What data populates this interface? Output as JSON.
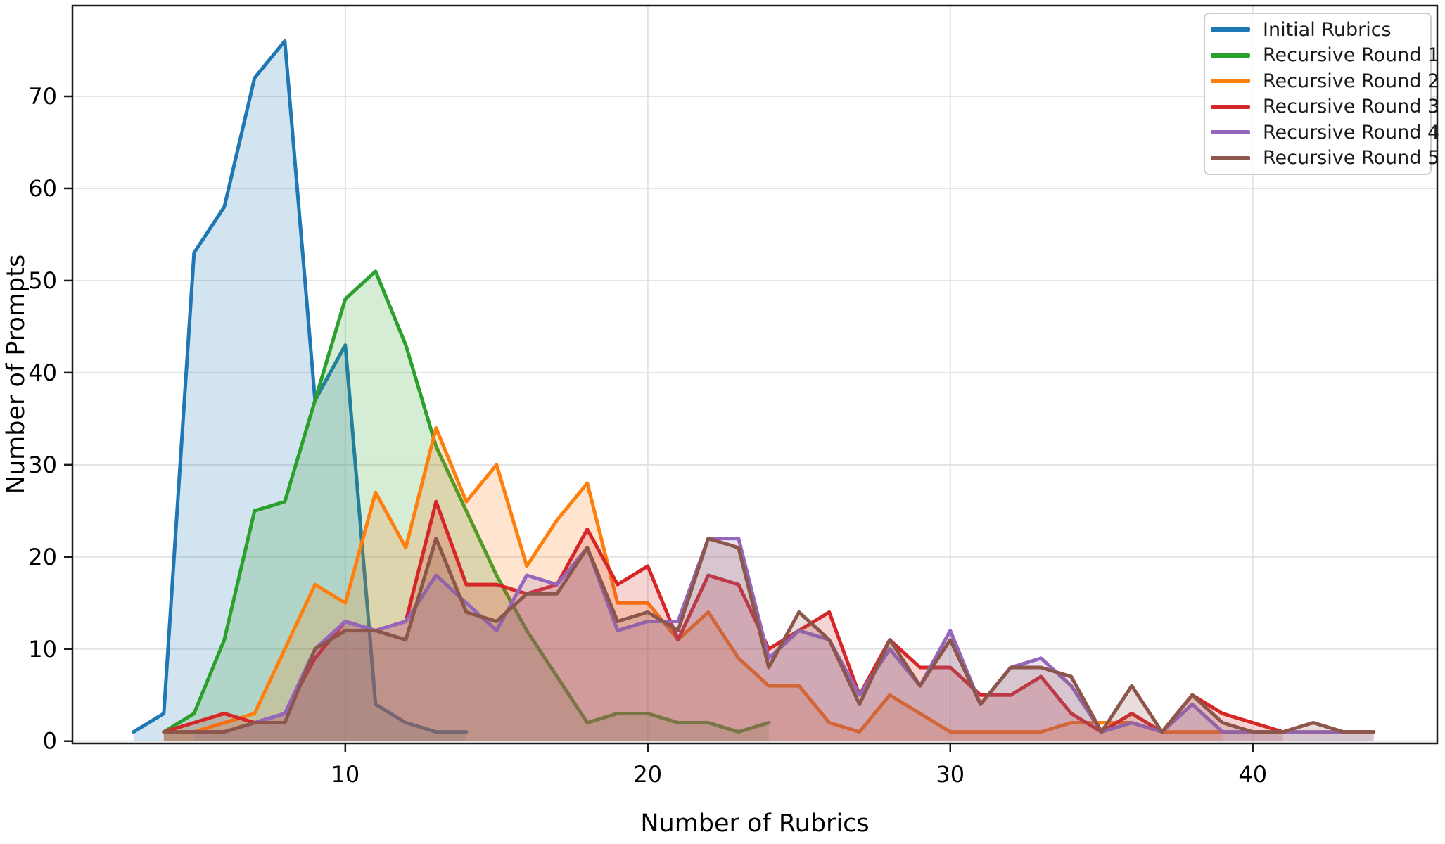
{
  "chart_data": {
    "type": "line",
    "title": "",
    "xlabel": "Number of Rubrics",
    "ylabel": "Number of Prompts",
    "x_ticks": [
      10,
      20,
      30,
      40
    ],
    "y_ticks": [
      0,
      10,
      20,
      30,
      40,
      50,
      60,
      70
    ],
    "xlim": [
      0.98,
      46.1
    ],
    "ylim": [
      -0.25,
      79.85
    ],
    "grid": true,
    "grid_color": "#e3e3e3",
    "frame_color": "#1a1a1a",
    "legend_position": "upper right",
    "fill_alpha": 0.2,
    "line_width": 5,
    "series": [
      {
        "name": "Initial Rubrics",
        "color": "#1f77b4",
        "x_start": 3,
        "values": [
          1,
          3,
          53,
          58,
          72,
          76,
          37,
          43,
          4,
          2,
          1,
          1
        ]
      },
      {
        "name": "Recursive Round 1",
        "color": "#2ca02c",
        "x_start": 4,
        "values": [
          1,
          3,
          11,
          25,
          26,
          37,
          48,
          51,
          43,
          32,
          25,
          18,
          12,
          7,
          2,
          3,
          3,
          2,
          2,
          1,
          2
        ]
      },
      {
        "name": "Recursive Round 2",
        "color": "#ff7f0e",
        "x_start": 4,
        "values": [
          1,
          1,
          2,
          3,
          10,
          17,
          15,
          27,
          21,
          34,
          26,
          30,
          19,
          24,
          28,
          15,
          15,
          11,
          14,
          9,
          6,
          6,
          2,
          1,
          5,
          3,
          1,
          1,
          1,
          1,
          2,
          2,
          2,
          1,
          1,
          1
        ]
      },
      {
        "name": "Recursive Round 3",
        "color": "#d62728",
        "x_start": 4,
        "values": [
          1,
          2,
          3,
          2,
          3,
          9,
          13,
          12,
          13,
          26,
          17,
          17,
          16,
          17,
          23,
          17,
          19,
          11,
          18,
          17,
          10,
          12,
          14,
          5,
          11,
          8,
          8,
          5,
          5,
          7,
          3,
          1,
          3,
          1,
          5,
          3,
          2,
          1
        ]
      },
      {
        "name": "Recursive Round 4",
        "color": "#9467bd",
        "x_start": 5,
        "values": [
          1,
          1,
          2,
          3,
          10,
          13,
          12,
          13,
          18,
          15,
          12,
          18,
          17,
          21,
          12,
          13,
          13,
          22,
          22,
          9,
          12,
          11,
          5,
          10,
          6,
          12,
          4,
          8,
          9,
          6,
          1,
          2,
          1,
          4,
          1,
          1,
          1,
          1,
          1,
          1
        ]
      },
      {
        "name": "Recursive Round 5",
        "color": "#8c564b",
        "x_start": 4,
        "values": [
          1,
          1,
          1,
          2,
          2,
          10,
          12,
          12,
          11,
          22,
          14,
          13,
          16,
          16,
          21,
          13,
          14,
          12,
          22,
          21,
          8,
          14,
          11,
          4,
          11,
          6,
          11,
          4,
          8,
          8,
          7,
          1,
          6,
          1,
          5,
          2,
          1,
          1,
          2,
          1,
          1
        ]
      }
    ]
  }
}
